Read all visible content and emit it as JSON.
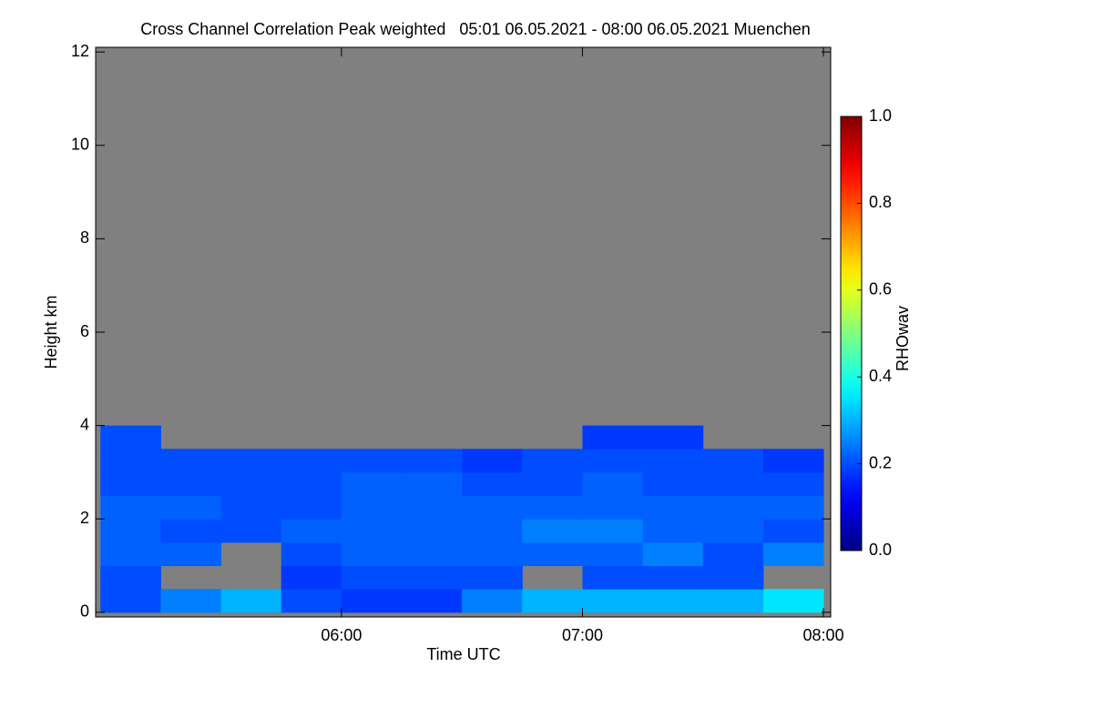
{
  "chart_data": {
    "type": "heatmap",
    "title": "Cross Channel Correlation Peak weighted   05:01 06.05.2021 - 08:00 06.05.2021 Muenchen",
    "xlabel": "Time UTC",
    "ylabel": "Height km",
    "colorbar_label": "RHOwav",
    "colormap": "jet",
    "missing_color": "#808080",
    "x": [
      5,
      5.25,
      5.5,
      5.75,
      6,
      6.25,
      6.5,
      6.75,
      7,
      7.25,
      7.5,
      7.75,
      8
    ],
    "y": [
      0,
      0.5,
      1,
      1.5,
      2,
      2.5,
      3,
      3.5,
      4
    ],
    "z": [
      [
        0.2,
        0.25,
        0.3,
        0.2,
        0.18,
        0.18,
        0.25,
        0.3,
        0.3,
        0.3,
        0.3,
        0.35
      ],
      [
        0.2,
        null,
        null,
        0.18,
        0.2,
        0.2,
        0.2,
        null,
        0.2,
        0.2,
        0.2,
        null
      ],
      [
        0.22,
        0.22,
        null,
        0.2,
        0.22,
        0.22,
        0.22,
        0.22,
        0.22,
        0.25,
        0.2,
        0.25
      ],
      [
        0.22,
        0.2,
        0.2,
        0.22,
        0.22,
        0.22,
        0.22,
        0.25,
        0.25,
        0.22,
        0.22,
        0.2
      ],
      [
        0.22,
        0.22,
        0.2,
        0.2,
        0.22,
        0.22,
        0.22,
        0.22,
        0.22,
        0.22,
        0.22,
        0.22
      ],
      [
        0.2,
        0.2,
        0.2,
        0.2,
        0.22,
        0.22,
        0.2,
        0.2,
        0.22,
        0.2,
        0.2,
        0.2
      ],
      [
        0.2,
        0.2,
        0.2,
        0.2,
        0.2,
        0.2,
        0.18,
        0.2,
        0.2,
        0.2,
        0.2,
        0.18
      ],
      [
        0.2,
        null,
        null,
        null,
        null,
        null,
        null,
        null,
        0.18,
        0.18,
        null,
        null
      ]
    ],
    "xlim": [
      4.98,
      8.03
    ],
    "ylim": [
      -0.1,
      12.1
    ],
    "xticks": [
      {
        "value": 6,
        "label": "06:00"
      },
      {
        "value": 7,
        "label": "07:00"
      },
      {
        "value": 8,
        "label": "08:00"
      }
    ],
    "yticks": [
      0,
      2,
      4,
      6,
      8,
      10,
      12
    ],
    "clim": [
      0,
      1
    ],
    "cticks": [
      {
        "value": 0,
        "label": "0.0"
      },
      0.2,
      0.4,
      0.6,
      0.8,
      {
        "value": 1,
        "label": "1.0"
      }
    ]
  }
}
